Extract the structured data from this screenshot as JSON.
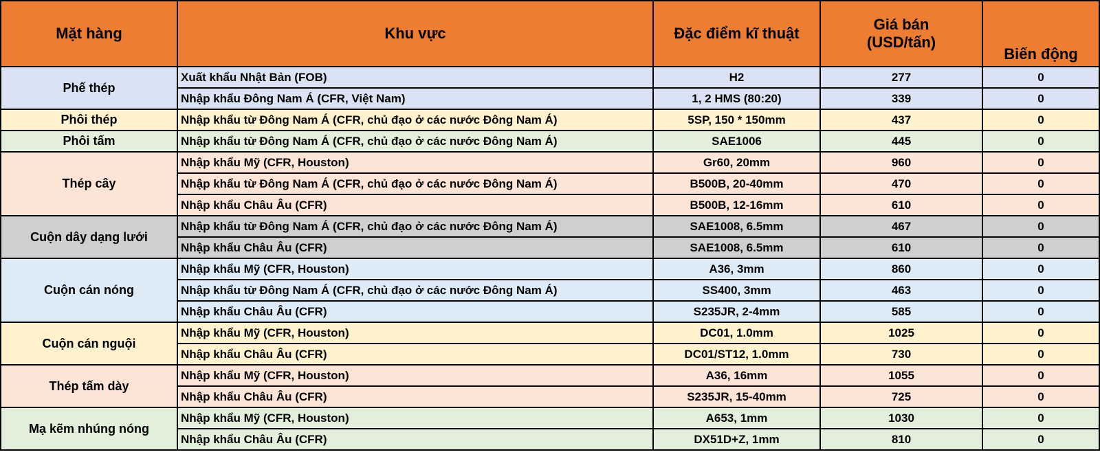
{
  "header": {
    "item": "Mặt hàng",
    "region": "Khu vực",
    "spec": "Đặc điểm kĩ thuật",
    "price_line1": "Giá bán",
    "price_line2": "(USD/tấn)",
    "change": "Biến động"
  },
  "colors": {
    "header": "#ED7D31"
  },
  "groups": [
    {
      "item": "Phế thép",
      "color": "#DAE3F3",
      "rows": [
        {
          "region": "Xuất khẩu Nhật Bản (FOB)",
          "spec": "H2",
          "price": "277",
          "change": "0"
        },
        {
          "region": "Nhập khẩu Đông Nam Á (CFR, Việt Nam)",
          "spec": "1, 2 HMS (80:20)",
          "price": "339",
          "change": "0"
        }
      ]
    },
    {
      "item": "Phôi thép",
      "color": "#FFF2CC",
      "rows": [
        {
          "region": "Nhập khẩu từ Đông Nam Á (CFR, chủ đạo ở các nước Đông Nam Á)",
          "spec": "5SP, 150 * 150mm",
          "price": "437",
          "change": "0"
        }
      ]
    },
    {
      "item": "Phôi tấm",
      "color": "#E2EFDA",
      "rows": [
        {
          "region": "Nhập khẩu từ Đông Nam Á (CFR, chủ đạo ở các nước Đông Nam Á)",
          "spec": "SAE1006",
          "price": "445",
          "change": "0"
        }
      ]
    },
    {
      "item": "Thép cây",
      "color": "#FCE4D6",
      "rows": [
        {
          "region": "Nhập khẩu Mỹ (CFR, Houston)",
          "spec": "Gr60, 20mm",
          "price": "960",
          "change": "0"
        },
        {
          "region": "Nhập khẩu từ Đông Nam Á (CFR, chủ đạo ở các nước Đông Nam Á)",
          "spec": "B500B, 20-40mm",
          "price": "470",
          "change": "0"
        },
        {
          "region": "Nhập khẩu Châu Âu (CFR)",
          "spec": "B500B, 12-16mm",
          "price": "610",
          "change": "0"
        }
      ]
    },
    {
      "item": "Cuộn dây dạng lưới",
      "color": "#D0CECE",
      "rows": [
        {
          "region": "Nhập khẩu từ Đông Nam Á (CFR, chủ đạo ở các nước Đông Nam Á)",
          "spec": "SAE1008, 6.5mm",
          "price": "467",
          "change": "0"
        },
        {
          "region": "Nhập khẩu Châu Âu (CFR)",
          "spec": "SAE1008, 6.5mm",
          "price": "610",
          "change": "0"
        }
      ]
    },
    {
      "item": "Cuộn cán nóng",
      "color": "#DDEBF7",
      "rows": [
        {
          "region": "Nhập khẩu Mỹ (CFR, Houston)",
          "spec": "A36, 3mm",
          "price": "860",
          "change": "0"
        },
        {
          "region": "Nhập khẩu từ Đông Nam Á (CFR, chủ đạo ở các nước Đông Nam Á)",
          "spec": "SS400, 3mm",
          "price": "463",
          "change": "0"
        },
        {
          "region": "Nhập khẩu Châu Âu (CFR)",
          "spec": "S235JR, 2-4mm",
          "price": "585",
          "change": "0"
        }
      ]
    },
    {
      "item": "Cuộn cán nguội",
      "color": "#FFF2CC",
      "rows": [
        {
          "region": "Nhập khẩu Mỹ (CFR, Houston)",
          "spec": "DC01, 1.0mm",
          "price": "1025",
          "change": "0"
        },
        {
          "region": "Nhập khẩu Châu Âu (CFR)",
          "spec": "DC01/ST12, 1.0mm",
          "price": "730",
          "change": "0"
        }
      ]
    },
    {
      "item": "Thép tấm dày",
      "color": "#FCE4D6",
      "rows": [
        {
          "region": "Nhập khẩu Mỹ (CFR, Houston)",
          "spec": "A36, 16mm",
          "price": "1055",
          "change": "0"
        },
        {
          "region": "Nhập khẩu Châu Âu (CFR)",
          "spec": "S235JR, 15-40mm",
          "price": "725",
          "change": "0"
        }
      ]
    },
    {
      "item": "Mạ kẽm nhúng nóng",
      "color": "#E2EFDA",
      "rows": [
        {
          "region": "Nhập khẩu Mỹ (CFR, Houston)",
          "spec": "A653, 1mm",
          "price": "1030",
          "change": "0"
        },
        {
          "region": "Nhập khẩu Châu Âu (CFR)",
          "spec": "DX51D+Z, 1mm",
          "price": "810",
          "change": "0"
        }
      ]
    }
  ]
}
